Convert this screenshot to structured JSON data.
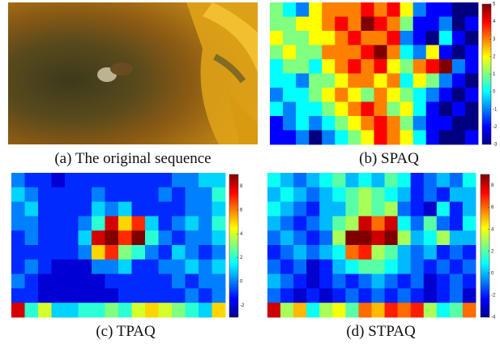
{
  "chart_data": [
    {
      "type": "image",
      "caption": "(a) The original sequence"
    },
    {
      "type": "heatmap",
      "caption": "(b) SPAQ",
      "zlim": [
        -3,
        5
      ],
      "zticks": [
        5,
        4,
        3,
        2,
        1,
        0,
        -1,
        -2,
        -3
      ],
      "values": [
        [
          1,
          0,
          -1,
          2,
          3,
          3,
          3,
          4,
          3,
          4,
          2,
          -1,
          -2,
          -2,
          -3,
          -3
        ],
        [
          1,
          1,
          2,
          2,
          3,
          4,
          3,
          5,
          4,
          3,
          1,
          -2,
          -2,
          -1,
          -3,
          -2
        ],
        [
          2,
          1,
          1,
          2,
          2,
          3,
          4,
          3,
          3,
          4,
          -1,
          -2,
          -3,
          0,
          -2,
          -3
        ],
        [
          1,
          2,
          1,
          1,
          3,
          3,
          3,
          4,
          5,
          3,
          0,
          -1,
          2,
          -2,
          -3,
          -2
        ],
        [
          0,
          1,
          1,
          0,
          2,
          3,
          4,
          3,
          4,
          2,
          1,
          3,
          4,
          5,
          -1,
          -2
        ],
        [
          0,
          0,
          -1,
          1,
          1,
          2,
          3,
          3,
          2,
          3,
          0,
          2,
          1,
          -1,
          -2,
          -3
        ],
        [
          -1,
          0,
          0,
          1,
          2,
          3,
          2,
          1,
          3,
          2,
          1,
          0,
          -1,
          -2,
          -3,
          -2
        ],
        [
          0,
          -1,
          0,
          0,
          1,
          2,
          3,
          4,
          3,
          1,
          2,
          0,
          -2,
          -3,
          -2,
          -3
        ],
        [
          -2,
          -1,
          0,
          -1,
          0,
          1,
          2,
          3,
          4,
          3,
          1,
          -1,
          -2,
          -2,
          -3,
          -3
        ],
        [
          -2,
          -2,
          -1,
          -3,
          -1,
          0,
          1,
          2,
          4,
          3,
          2,
          0,
          -2,
          -3,
          -3,
          -2
        ]
      ]
    },
    {
      "type": "heatmap",
      "caption": "(c) TPAQ",
      "zlim": [
        -3,
        9
      ],
      "zticks": [
        8,
        6,
        4,
        2,
        0,
        -2
      ],
      "values": [
        [
          0,
          -1,
          -1,
          -2,
          -1,
          -1,
          -1,
          -1,
          -1,
          -1,
          -1,
          -1,
          0,
          0,
          1,
          1
        ],
        [
          1,
          0,
          -1,
          -1,
          -1,
          -1,
          0,
          -1,
          -1,
          -1,
          -1,
          0,
          -1,
          0,
          0,
          2
        ],
        [
          0,
          1,
          -1,
          -1,
          -1,
          -1,
          1,
          0,
          1,
          -1,
          -1,
          -1,
          -1,
          0,
          0,
          1
        ],
        [
          0,
          0,
          -1,
          -1,
          -1,
          0,
          2,
          8,
          5,
          7,
          1,
          -1,
          0,
          1,
          0,
          2
        ],
        [
          -1,
          0,
          -1,
          -1,
          -1,
          1,
          8,
          9,
          7,
          9,
          2,
          0,
          -1,
          0,
          0,
          1
        ],
        [
          -1,
          -1,
          -1,
          -1,
          -1,
          0,
          5,
          7,
          3,
          2,
          0,
          -1,
          1,
          0,
          -1,
          0
        ],
        [
          -1,
          0,
          -1,
          -2,
          -2,
          -2,
          0,
          0,
          1,
          -1,
          -1,
          0,
          0,
          1,
          0,
          1
        ],
        [
          0,
          -1,
          -2,
          -2,
          -2,
          -2,
          -2,
          -1,
          -1,
          -1,
          -1,
          -1,
          0,
          -1,
          0,
          0
        ],
        [
          -1,
          -1,
          -2,
          -2,
          -2,
          -2,
          -2,
          -2,
          -1,
          -1,
          -1,
          -1,
          -1,
          0,
          -1,
          0
        ],
        [
          8,
          2,
          4,
          1,
          1,
          2,
          2,
          3,
          2,
          4,
          5,
          4,
          3,
          2,
          1,
          5
        ]
      ]
    },
    {
      "type": "heatmap",
      "caption": "(d) STPAQ",
      "zlim": [
        -4,
        9
      ],
      "zticks": [
        8,
        6,
        4,
        2,
        0,
        -2,
        -4
      ],
      "values": [
        [
          1,
          0,
          -1,
          0,
          1,
          2,
          0,
          1,
          0,
          2,
          1,
          -2,
          -1,
          0,
          -1,
          1
        ],
        [
          0,
          1,
          0,
          -1,
          0,
          1,
          2,
          3,
          2,
          1,
          0,
          -2,
          -1,
          -2,
          0,
          0
        ],
        [
          1,
          0,
          -1,
          -2,
          0,
          0,
          2,
          3,
          2,
          3,
          -1,
          -2,
          -3,
          1,
          -2,
          0
        ],
        [
          0,
          -1,
          -2,
          -1,
          0,
          2,
          3,
          8,
          6,
          8,
          1,
          -1,
          2,
          -1,
          -2,
          1
        ],
        [
          -1,
          0,
          -1,
          -2,
          -1,
          3,
          9,
          9,
          8,
          9,
          3,
          0,
          1,
          3,
          0,
          0
        ],
        [
          -2,
          -1,
          0,
          -1,
          0,
          1,
          6,
          7,
          3,
          2,
          0,
          -1,
          0,
          -2,
          -1,
          -2
        ],
        [
          -1,
          -2,
          -1,
          -3,
          -2,
          0,
          1,
          2,
          2,
          1,
          0,
          -1,
          -2,
          -1,
          -2,
          -1
        ],
        [
          0,
          -1,
          -2,
          -3,
          -2,
          -1,
          -2,
          -1,
          0,
          -1,
          -2,
          -1,
          -3,
          -2,
          -1,
          -2
        ],
        [
          -1,
          -2,
          -3,
          -2,
          -3,
          -2,
          -1,
          -2,
          -1,
          -2,
          -1,
          -2,
          -3,
          -2,
          -1,
          -3
        ],
        [
          8,
          3,
          5,
          1,
          3,
          4,
          2,
          6,
          5,
          7,
          6,
          7,
          3,
          1,
          2,
          6
        ]
      ]
    }
  ]
}
